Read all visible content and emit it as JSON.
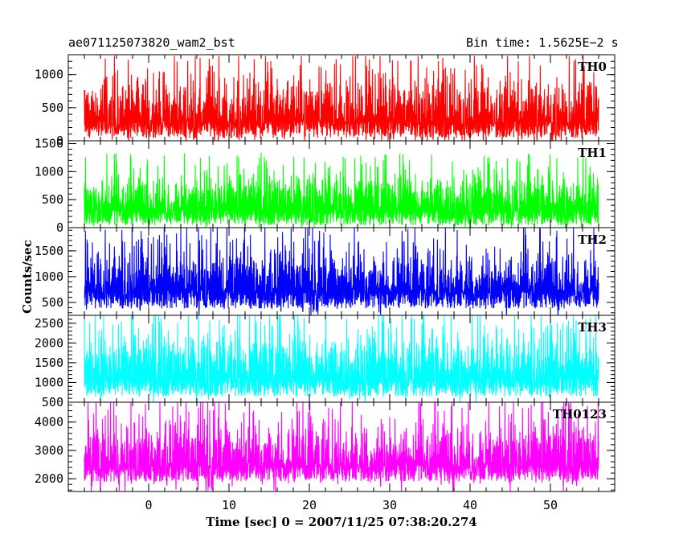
{
  "header": {
    "title_left": "ae071125073820_wam2_bst",
    "title_right": "Bin time: 1.5625E−2 s"
  },
  "chart_data": [
    {
      "type": "line",
      "series": [
        {
          "name": "TH0",
          "color": "#ff0000",
          "baseline": 40,
          "mean": 500,
          "spread": 260,
          "max": 1280
        }
      ],
      "x": {
        "start": -8,
        "end": 56
      },
      "ylim": [
        0,
        1300
      ],
      "yticks": [
        0,
        500,
        1000
      ],
      "ytick_labels": [
        "0",
        "500",
        "1000"
      ]
    },
    {
      "type": "line",
      "series": [
        {
          "name": "TH1",
          "color": "#00ff00",
          "baseline": 40,
          "mean": 550,
          "spread": 240,
          "max": 1450
        }
      ],
      "x": {
        "start": -8,
        "end": 56
      },
      "ylim": [
        0,
        1550
      ],
      "yticks": [
        0,
        500,
        1000,
        1500
      ],
      "ytick_labels": [
        "0",
        "500",
        "1000",
        "1500"
      ]
    },
    {
      "type": "line",
      "series": [
        {
          "name": "TH2",
          "color": "#0000ff",
          "baseline": 380,
          "mean": 1000,
          "spread": 320,
          "max": 1950
        }
      ],
      "x": {
        "start": -8,
        "end": 56
      },
      "ylim": [
        250,
        1950
      ],
      "yticks": [
        500,
        1000,
        1500
      ],
      "ytick_labels": [
        "500",
        "1000",
        "1500"
      ]
    },
    {
      "type": "line",
      "series": [
        {
          "name": "TH3",
          "color": "#00ffff",
          "baseline": 640,
          "mean": 1500,
          "spread": 420,
          "max": 2700
        }
      ],
      "x": {
        "start": -8,
        "end": 56
      },
      "ylim": [
        500,
        2700
      ],
      "yticks": [
        500,
        1000,
        1500,
        2000,
        2500
      ],
      "ytick_labels": [
        "500",
        "1000",
        "1500",
        "2000",
        "2500"
      ]
    },
    {
      "type": "line",
      "series": [
        {
          "name": "TH0123",
          "color": "#ff00ff",
          "baseline": 1900,
          "mean": 3000,
          "spread": 650,
          "max": 4700
        }
      ],
      "x": {
        "start": -8,
        "end": 56
      },
      "ylim": [
        1550,
        4700
      ],
      "yticks": [
        2000,
        3000,
        4000
      ],
      "ytick_labels": [
        "2000",
        "3000",
        "4000"
      ]
    }
  ],
  "axes": {
    "xlim": [
      -10,
      58
    ],
    "xticks": [
      0,
      10,
      20,
      30,
      40,
      50
    ],
    "xtick_labels": [
      "0",
      "10",
      "20",
      "30",
      "40",
      "50"
    ],
    "xlabel": "Time [sec] 0 = 2007/11/25 07:38:20.274",
    "ylabel": "Counts/sec"
  }
}
